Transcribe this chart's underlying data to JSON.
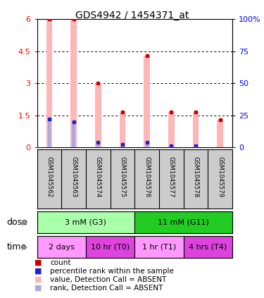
{
  "title": "GDS4942 / 1454371_at",
  "samples": [
    "GSM1045562",
    "GSM1045563",
    "GSM1045574",
    "GSM1045575",
    "GSM1045576",
    "GSM1045577",
    "GSM1045578",
    "GSM1045579"
  ],
  "bar_values": [
    6.0,
    6.0,
    3.0,
    1.65,
    4.3,
    1.65,
    1.65,
    1.3
  ],
  "rank_percent": [
    22,
    20,
    4,
    2.5,
    4,
    1.5,
    1.5,
    0
  ],
  "ylim_left": [
    0,
    6
  ],
  "ylim_right": [
    0,
    100
  ],
  "yticks_left": [
    0,
    1.5,
    3.0,
    4.5,
    6.0
  ],
  "ytick_labels_left": [
    "0",
    "1.5",
    "3",
    "4.5",
    "6"
  ],
  "yticks_right": [
    0,
    25,
    50,
    75,
    100
  ],
  "ytick_labels_right": [
    "0",
    "25",
    "50",
    "75",
    "100%"
  ],
  "bar_color_pink": "#FFB6B6",
  "bar_color_blue": "#AAAADD",
  "dot_color_red": "#CC0000",
  "dot_color_blue": "#2222CC",
  "dose_groups": [
    {
      "label": "3 mM (G3)",
      "start": 0,
      "end": 4,
      "color": "#AAFFAA"
    },
    {
      "label": "11 mM (G11)",
      "start": 4,
      "end": 8,
      "color": "#22CC22"
    }
  ],
  "time_groups": [
    {
      "label": "2 days",
      "start": 0,
      "end": 2,
      "color": "#FF99FF"
    },
    {
      "label": "10 hr (T0)",
      "start": 2,
      "end": 4,
      "color": "#DD44DD"
    },
    {
      "label": "1 hr (T1)",
      "start": 4,
      "end": 6,
      "color": "#FF99FF"
    },
    {
      "label": "4 hrs (T4)",
      "start": 6,
      "end": 8,
      "color": "#DD44DD"
    }
  ],
  "legend_items": [
    {
      "label": "count",
      "color": "#CC0000"
    },
    {
      "label": "percentile rank within the sample",
      "color": "#2222CC"
    },
    {
      "label": "value, Detection Call = ABSENT",
      "color": "#FFB6B6"
    },
    {
      "label": "rank, Detection Call = ABSENT",
      "color": "#AAAADD"
    }
  ],
  "dose_label": "dose",
  "time_label": "time",
  "bg_color": "#FFFFFF",
  "sample_bg_color": "#CCCCCC",
  "bar_width": 0.25,
  "rank_bar_width": 0.12
}
